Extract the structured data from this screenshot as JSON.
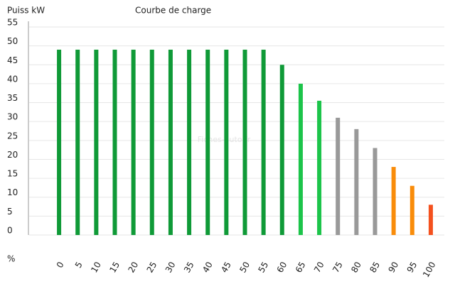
{
  "chart_data": {
    "type": "bar",
    "title": "Courbe de charge",
    "y_label": "Puiss kW",
    "x_label": "%",
    "watermark": "Fiches-auto.fr",
    "categories": [
      "0",
      "5",
      "10",
      "15",
      "20",
      "25",
      "30",
      "35",
      "40",
      "45",
      "50",
      "55",
      "60",
      "65",
      "70",
      "75",
      "80",
      "85",
      "90",
      "95",
      "100"
    ],
    "values": [
      49,
      49,
      49,
      49,
      49,
      49,
      49,
      49,
      49,
      49,
      49,
      49,
      45,
      40,
      35.5,
      31,
      28,
      23,
      18,
      13,
      8
    ],
    "colors": [
      "#0f9a37",
      "#0f9a37",
      "#0f9a37",
      "#0f9a37",
      "#0f9a37",
      "#0f9a37",
      "#0f9a37",
      "#0f9a37",
      "#0f9a37",
      "#0f9a37",
      "#0f9a37",
      "#0f9a37",
      "#0f9a37",
      "#1cc44a",
      "#1cc44a",
      "#999999",
      "#999999",
      "#999999",
      "#f98c0a",
      "#f98c0a",
      "#f4511e"
    ],
    "ylim": [
      0,
      55
    ],
    "yticks": [
      0,
      5,
      10,
      15,
      20,
      25,
      30,
      35,
      40,
      45,
      50,
      55
    ],
    "grid": true
  }
}
